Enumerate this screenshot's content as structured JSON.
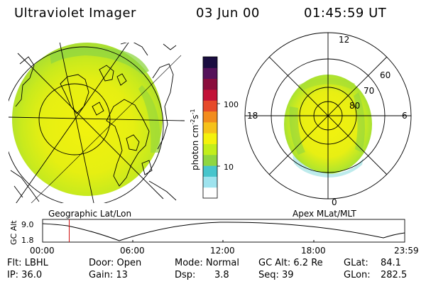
{
  "header": {
    "title": "Ultraviolet Imager",
    "date": "03 Jun 00",
    "time": "01:45:59 UT"
  },
  "left_map": {
    "caption": "Geographic Lat/Lon"
  },
  "right_map": {
    "caption": "Apex MLat/MLT",
    "mlt_labels": {
      "top": "12",
      "left": "18",
      "right": "6",
      "bottom": "0"
    },
    "lat_labels": [
      "60",
      "70",
      "80"
    ]
  },
  "colorbar": {
    "label": "photon cm",
    "label_exp1": "-2",
    "label_mid": "s",
    "label_exp2": "-1",
    "ticks": [
      "100",
      "10"
    ],
    "colors": [
      "#ffffff",
      "#9ee3ee",
      "#47c5cc",
      "#8fd641",
      "#c2ee1b",
      "#f4f20d",
      "#f6c21a",
      "#f28c1d",
      "#e64a2a",
      "#c21237",
      "#8a0d3c",
      "#55125a",
      "#1a0d40"
    ]
  },
  "altitude_plot": {
    "ylabel": "GC Alt",
    "yticks": [
      "9.0",
      "1.8"
    ],
    "xticks": [
      "00:00",
      "06:00",
      "12:00",
      "18:00",
      "23:59"
    ],
    "current_time_marker": 0.0736
  },
  "footer": {
    "filter": "Flt: LBHL",
    "ip": "IP: 36.0",
    "door": "Door: Open",
    "gain": "Gain: 13",
    "mode": "Mode: Normal",
    "dsp": "Dsp:",
    "dsp_value": "3.8",
    "gc_alt": "GC Alt: 6.2 Re",
    "seq": "Seq: 39",
    "glat": "GLat:",
    "glat_value": "84.1",
    "glon": "GLon:",
    "glon_value": "282.5"
  }
}
